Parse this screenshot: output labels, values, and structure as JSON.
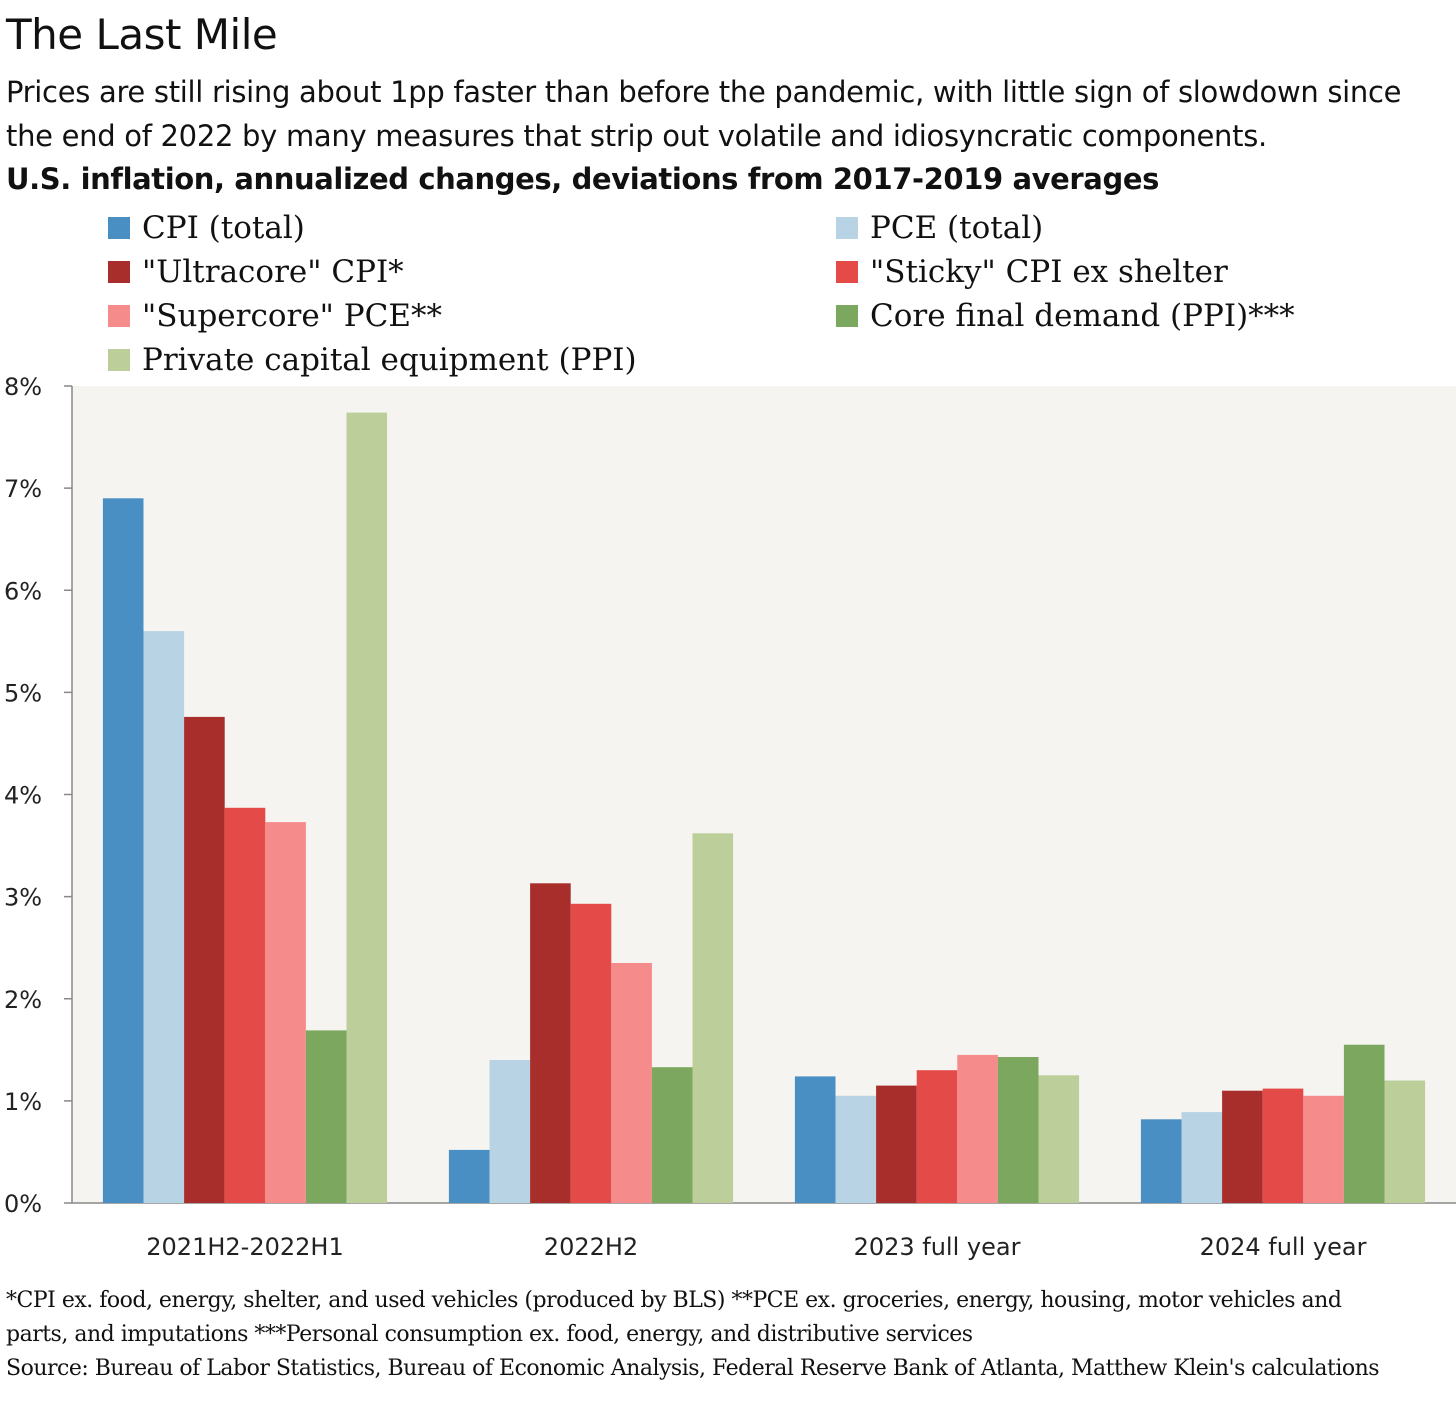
{
  "header": {
    "title": "The Last Mile",
    "subtitle": "Prices are still rising about 1pp faster than before the pandemic, with little sign of slowdown since the end of 2022 by many measures that strip out volatile and idiosyncratic components.",
    "chart_heading": "U.S. inflation, annualized changes, deviations from 2017-2019 averages"
  },
  "footnotes": {
    "line1": "*CPI ex. food, energy, shelter, and used vehicles (produced by BLS)    **PCE ex. groceries, energy, housing, motor vehicles and",
    "line2": "parts, and imputations    ***Personal consumption ex. food, energy, and distributive services",
    "source": "Source: Bureau of Labor Statistics, Bureau of Economic Analysis, Federal Reserve Bank of Atlanta, Matthew Klein's calculations"
  },
  "colors": {
    "plot_background": "#f6f4f0",
    "axis": "#888888"
  },
  "chart_data": {
    "type": "bar",
    "title": "U.S. inflation, annualized changes, deviations from 2017-2019 averages",
    "categories": [
      "2021H2-2022H1",
      "2022H2",
      "2023 full year",
      "2024 full year"
    ],
    "ylim": [
      0,
      8
    ],
    "yticks": [
      0,
      1,
      2,
      3,
      4,
      5,
      6,
      7,
      8
    ],
    "ytick_labels": [
      "0%",
      "1%",
      "2%",
      "3%",
      "4%",
      "5%",
      "6%",
      "7%",
      "8%"
    ],
    "grid": false,
    "legend_position": "top",
    "series": [
      {
        "name": "CPI (total)",
        "color": "#4a8fc4",
        "values": [
          6.9,
          0.52,
          1.24,
          0.82
        ]
      },
      {
        "name": "PCE (total)",
        "color": "#b8d3e3",
        "values": [
          5.6,
          1.4,
          1.05,
          0.89
        ]
      },
      {
        "name": "\"Ultracore\" CPI*",
        "color": "#a82e2b",
        "values": [
          4.76,
          3.13,
          1.15,
          1.1
        ]
      },
      {
        "name": "\"Sticky\" CPI ex shelter",
        "color": "#e44b48",
        "values": [
          3.87,
          2.93,
          1.3,
          1.12
        ]
      },
      {
        "name": "\"Supercore\" PCE**",
        "color": "#f58b8a",
        "values": [
          3.73,
          2.35,
          1.45,
          1.05
        ]
      },
      {
        "name": "Core final demand (PPI)***",
        "color": "#7ba85e",
        "values": [
          1.69,
          1.33,
          1.43,
          1.55
        ]
      },
      {
        "name": "Private capital equipment (PPI)",
        "color": "#bccf9b",
        "values": [
          7.74,
          3.62,
          1.25,
          1.2
        ]
      }
    ]
  }
}
